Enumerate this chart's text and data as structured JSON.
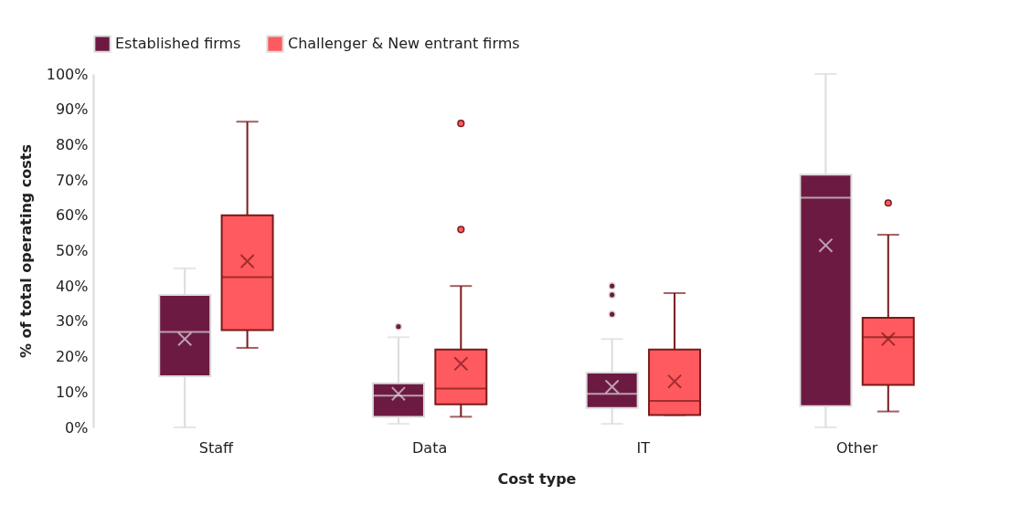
{
  "chart_data": {
    "type": "box",
    "xlabel": "Cost type",
    "ylabel": "% of total operating costs",
    "categories": [
      "Staff",
      "Data",
      "IT",
      "Other"
    ],
    "ylim": [
      0,
      100
    ],
    "yticks": [
      {
        "value": 0,
        "label": "0%"
      },
      {
        "value": 10,
        "label": "10%"
      },
      {
        "value": 20,
        "label": "20%"
      },
      {
        "value": 30,
        "label": "30%"
      },
      {
        "value": 40,
        "label": "40%"
      },
      {
        "value": 50,
        "label": "50%"
      },
      {
        "value": 60,
        "label": "60%"
      },
      {
        "value": 70,
        "label": "70%"
      },
      {
        "value": 80,
        "label": "80%"
      },
      {
        "value": 90,
        "label": "90%"
      },
      {
        "value": 100,
        "label": "100%"
      }
    ],
    "grid": false,
    "legend": "top",
    "series": [
      {
        "name": "Established firms",
        "color": "#6d1a42",
        "boxes": [
          {
            "low": 0,
            "q1": 14.5,
            "median": 27,
            "q3": 37.5,
            "high": 45,
            "mean": 25
          },
          {
            "low": 1,
            "q1": 3,
            "median": 9,
            "q3": 12.5,
            "high": 25.5,
            "mean": 9.5,
            "outliers": [
              28.5
            ]
          },
          {
            "low": 1,
            "q1": 5.5,
            "median": 9.5,
            "q3": 15.5,
            "high": 25,
            "mean": 11.5,
            "outliers": [
              32,
              37.5,
              40
            ]
          },
          {
            "low": 0,
            "q1": 6,
            "median": 65,
            "q3": 71.5,
            "high": 100,
            "mean": 51.5
          }
        ]
      },
      {
        "name": "Challenger & New entrant firms",
        "color": "#ff5a5f",
        "boxes": [
          {
            "low": 22.5,
            "q1": 27.5,
            "median": 42.5,
            "q3": 60,
            "high": 86.5,
            "mean": 47
          },
          {
            "low": 3,
            "q1": 6.5,
            "median": 11,
            "q3": 22,
            "high": 40,
            "mean": 18,
            "outliers": [
              56,
              86
            ]
          },
          {
            "low": 3.5,
            "q1": 3.5,
            "median": 7.5,
            "q3": 22,
            "high": 38,
            "mean": 13
          },
          {
            "low": 4.5,
            "q1": 12,
            "median": 25.5,
            "q3": 31,
            "high": 54.5,
            "mean": 25,
            "outliers": [
              63.5
            ]
          }
        ]
      }
    ]
  }
}
